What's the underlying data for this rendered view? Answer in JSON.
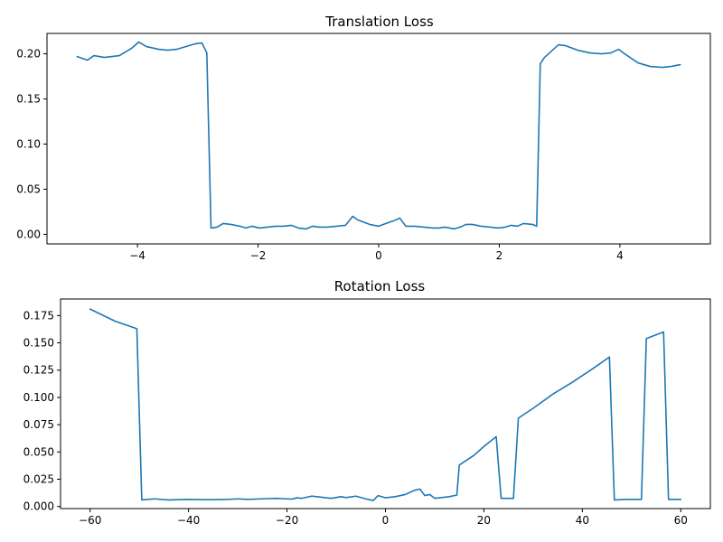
{
  "chart_data": [
    {
      "type": "line",
      "title": "Translation Loss",
      "xlabel": "",
      "ylabel": "",
      "xlim": [
        -5.5,
        5.5
      ],
      "ylim": [
        -0.0106,
        0.2226
      ],
      "xticks": [
        -4,
        -2,
        0,
        2,
        4
      ],
      "xtick_labels": [
        "−4",
        "−2",
        "0",
        "2",
        "4"
      ],
      "yticks": [
        0.0,
        0.05,
        0.1,
        0.15,
        0.2
      ],
      "ytick_labels": [
        "0.00",
        "0.05",
        "0.10",
        "0.15",
        "0.20"
      ],
      "grid": false,
      "line_color": "#1f77b4",
      "series": [
        {
          "x": [
            -5.0,
            -4.83,
            -4.72,
            -4.55,
            -4.3,
            -4.1,
            -3.98,
            -3.85,
            -3.65,
            -3.5,
            -3.35,
            -3.2,
            -3.05,
            -2.93,
            -2.85,
            -2.78,
            -2.68,
            -2.58,
            -2.45,
            -2.3,
            -2.2,
            -2.1,
            -1.98,
            -1.85,
            -1.7,
            -1.58,
            -1.45,
            -1.33,
            -1.2,
            -1.1,
            -0.98,
            -0.85,
            -0.7,
            -0.55,
            -0.43,
            -0.35,
            -0.15,
            0.0,
            0.12,
            0.25,
            0.35,
            0.45,
            0.6,
            0.75,
            0.9,
            1.0,
            1.1,
            1.25,
            1.35,
            1.45,
            1.55,
            1.7,
            1.85,
            1.98,
            2.1,
            2.2,
            2.3,
            2.4,
            2.55,
            2.62,
            2.68,
            2.75,
            2.85,
            2.98,
            3.1,
            3.3,
            3.5,
            3.7,
            3.85,
            3.98,
            4.1,
            4.3,
            4.5,
            4.7,
            4.85,
            5.0
          ],
          "y": [
            0.197,
            0.193,
            0.198,
            0.196,
            0.198,
            0.206,
            0.213,
            0.208,
            0.205,
            0.204,
            0.205,
            0.208,
            0.211,
            0.212,
            0.201,
            0.007,
            0.008,
            0.012,
            0.011,
            0.009,
            0.007,
            0.009,
            0.007,
            0.008,
            0.009,
            0.009,
            0.01,
            0.007,
            0.006,
            0.009,
            0.008,
            0.008,
            0.009,
            0.01,
            0.02,
            0.016,
            0.011,
            0.009,
            0.012,
            0.015,
            0.018,
            0.009,
            0.009,
            0.008,
            0.007,
            0.007,
            0.008,
            0.006,
            0.008,
            0.011,
            0.011,
            0.009,
            0.008,
            0.007,
            0.008,
            0.01,
            0.009,
            0.012,
            0.011,
            0.009,
            0.189,
            0.196,
            0.202,
            0.21,
            0.209,
            0.204,
            0.201,
            0.2,
            0.201,
            0.205,
            0.199,
            0.19,
            0.186,
            0.185,
            0.186,
            0.188
          ]
        }
      ]
    },
    {
      "type": "line",
      "title": "Rotation Loss",
      "xlabel": "",
      "ylabel": "",
      "xlim": [
        -66.0,
        66.0
      ],
      "ylim": [
        -0.0019,
        0.1902
      ],
      "xticks": [
        -60,
        -40,
        -20,
        0,
        20,
        40,
        60
      ],
      "xtick_labels": [
        "−60",
        "−40",
        "−20",
        "0",
        "20",
        "40",
        "60"
      ],
      "yticks": [
        0.0,
        0.025,
        0.05,
        0.075,
        0.1,
        0.125,
        0.15,
        0.175
      ],
      "ytick_labels": [
        "0.000",
        "0.025",
        "0.050",
        "0.075",
        "0.100",
        "0.125",
        "0.150",
        "0.175"
      ],
      "grid": false,
      "line_color": "#1f77b4",
      "series": [
        {
          "x": [
            -60,
            -55,
            -50.5,
            -49.5,
            -47,
            -44,
            -40,
            -36,
            -32,
            -30,
            -28,
            -24,
            -22,
            -21,
            -19,
            -18,
            -17,
            -15,
            -13,
            -11,
            -9,
            -8,
            -6,
            -4,
            -2.5,
            -1.5,
            0,
            2,
            4,
            6,
            7,
            8,
            9,
            10,
            11,
            13,
            14.5,
            15,
            18,
            20,
            22.5,
            23.5,
            26,
            27,
            30,
            34,
            38,
            42,
            45.5,
            46.5,
            49,
            52,
            53,
            56.5,
            57.5,
            60
          ],
          "y": [
            0.181,
            0.17,
            0.163,
            0.006,
            0.007,
            0.006,
            0.0065,
            0.0062,
            0.0065,
            0.007,
            0.0065,
            0.0072,
            0.0075,
            0.0072,
            0.0068,
            0.008,
            0.0075,
            0.0095,
            0.0085,
            0.0075,
            0.009,
            0.0082,
            0.0095,
            0.007,
            0.0055,
            0.01,
            0.008,
            0.009,
            0.011,
            0.015,
            0.016,
            0.01,
            0.011,
            0.0075,
            0.008,
            0.009,
            0.0105,
            0.038,
            0.047,
            0.055,
            0.064,
            0.0075,
            0.0075,
            0.081,
            0.09,
            0.103,
            0.114,
            0.126,
            0.137,
            0.006,
            0.0065,
            0.0065,
            0.154,
            0.16,
            0.0065,
            0.0065
          ]
        }
      ]
    }
  ]
}
